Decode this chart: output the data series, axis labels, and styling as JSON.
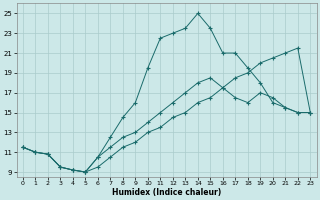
{
  "xlabel": "Humidex (Indice chaleur)",
  "bg_color": "#cce8e8",
  "grid_color": "#aacccc",
  "line_color": "#1a6b6b",
  "xlim": [
    -0.5,
    23.5
  ],
  "ylim": [
    8.5,
    26.0
  ],
  "xticks": [
    0,
    1,
    2,
    3,
    4,
    5,
    6,
    7,
    8,
    9,
    10,
    11,
    12,
    13,
    14,
    15,
    16,
    17,
    18,
    19,
    20,
    21,
    22,
    23
  ],
  "yticks": [
    9,
    11,
    13,
    15,
    17,
    19,
    21,
    23,
    25
  ],
  "line1_x": [
    0,
    1,
    2,
    3,
    4,
    5,
    6,
    7,
    8,
    9,
    10,
    11,
    12,
    13,
    14,
    15,
    16,
    17,
    18,
    19,
    20,
    21,
    22,
    23
  ],
  "line1_y": [
    11.5,
    11.0,
    10.8,
    9.5,
    9.2,
    9.0,
    10.5,
    12.5,
    14.5,
    16.0,
    19.5,
    22.5,
    23.0,
    23.5,
    25.0,
    23.5,
    21.0,
    21.0,
    19.5,
    18.0,
    16.0,
    15.5,
    15.0,
    15.0
  ],
  "line2_x": [
    0,
    1,
    2,
    3,
    4,
    5,
    6,
    7,
    8,
    9,
    10,
    11,
    12,
    13,
    14,
    15,
    16,
    17,
    18,
    19,
    20,
    21,
    22,
    23
  ],
  "line2_y": [
    11.5,
    11.0,
    10.8,
    9.5,
    9.2,
    9.0,
    10.5,
    11.5,
    12.5,
    13.0,
    14.0,
    15.0,
    16.0,
    17.0,
    18.0,
    18.5,
    17.5,
    16.5,
    16.0,
    17.0,
    16.5,
    15.5,
    15.0,
    15.0
  ],
  "line3_x": [
    0,
    1,
    2,
    3,
    4,
    5,
    6,
    7,
    8,
    9,
    10,
    11,
    12,
    13,
    14,
    15,
    16,
    17,
    18,
    19,
    20,
    21,
    22,
    23
  ],
  "line3_y": [
    11.5,
    11.0,
    10.8,
    9.5,
    9.2,
    9.0,
    9.5,
    10.5,
    11.5,
    12.0,
    13.0,
    13.5,
    14.5,
    15.0,
    16.0,
    16.5,
    17.5,
    18.5,
    19.0,
    20.0,
    20.5,
    21.0,
    21.5,
    15.0
  ]
}
